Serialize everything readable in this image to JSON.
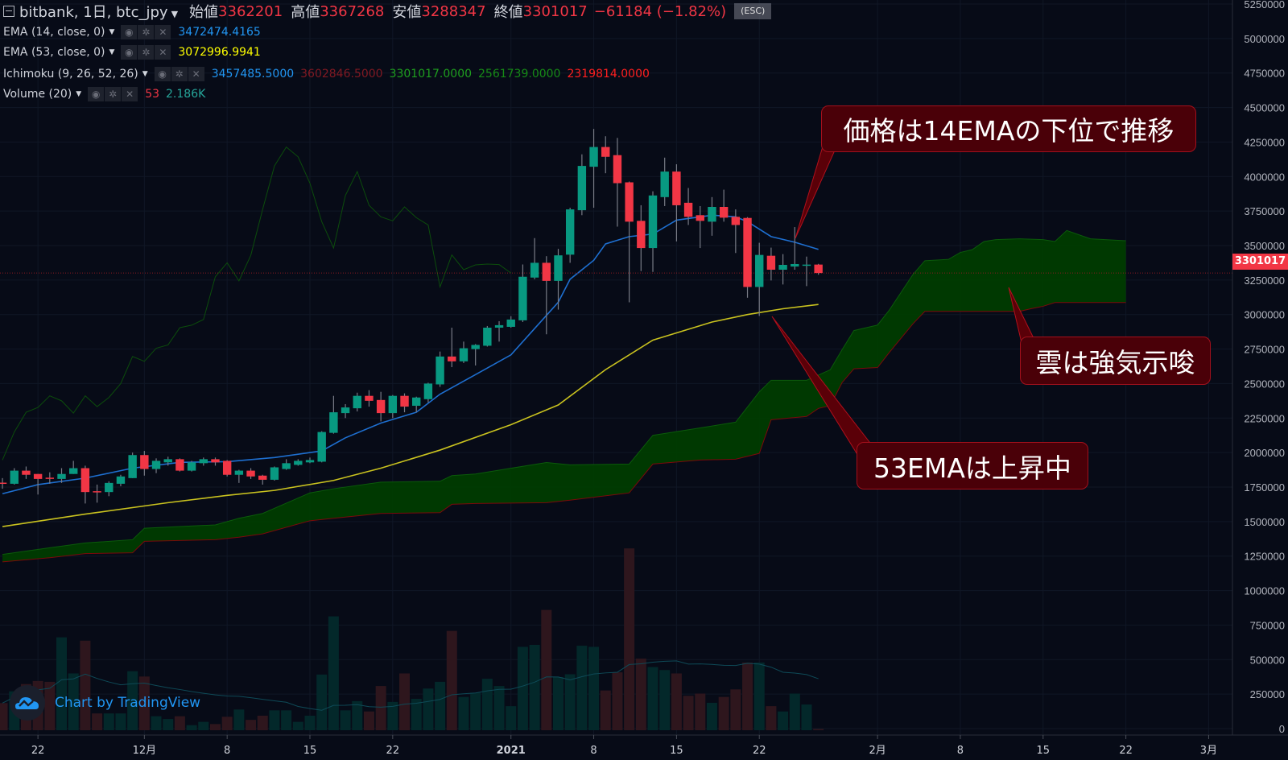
{
  "header": {
    "symbol": "bitbank, 1日, btc_jpy",
    "open_label": "始値",
    "open": "3362201",
    "high_label": "高値",
    "high": "3367268",
    "low_label": "安値",
    "low": "3288347",
    "close_label": "終値",
    "close": "3301017",
    "change": "−61184 (−1.82%)",
    "esc": "(ESC)"
  },
  "indicators": [
    {
      "label": "EMA (14, close, 0)",
      "values": [
        {
          "text": "3472474.4165",
          "color": "#2196f3"
        }
      ]
    },
    {
      "label": "EMA (53, close, 0)",
      "values": [
        {
          "text": "3072996.9941",
          "color": "#ffff00"
        }
      ]
    },
    {
      "label": "Ichimoku (9, 26, 52, 26)",
      "values": [
        {
          "text": "3457485.5000",
          "color": "#2196f3"
        },
        {
          "text": "3602846.5000",
          "color": "#801922"
        },
        {
          "text": "3301017.0000",
          "color": "#1e9e1e"
        },
        {
          "text": "2561739.0000",
          "color": "#168a16"
        },
        {
          "text": "2319814.0000",
          "color": "#ff1f1f"
        }
      ]
    },
    {
      "label": "Volume (20)",
      "values": [
        {
          "text": "53",
          "color": "#f23645"
        },
        {
          "text": "2.186K",
          "color": "#26a69a"
        }
      ]
    }
  ],
  "icons": {
    "visibility": "eye-icon",
    "settings": "gear-icon",
    "remove": "close-icon",
    "menu": "chevron-down-icon",
    "collapse": "collapse-icon"
  },
  "price_tag": "3301017",
  "watermark": "Chart by TradingView",
  "annotations": [
    {
      "text": "価格は14EMAの下位で推移"
    },
    {
      "text": "雲は強気示唆"
    },
    {
      "text": "53EMAは上昇中"
    }
  ],
  "colors": {
    "background": "#070b17",
    "up": "#089981",
    "down": "#f23645",
    "wick": "#787b86",
    "volume_up": "#03282a",
    "volume_down": "#2e161d",
    "volume_ma": "#0e4a57",
    "ema14": "#1e6fd0",
    "ema53": "#c9c21f",
    "cloud_fill": "#003c00",
    "span_a": "#0b5a0b",
    "span_b": "#7a0a0a",
    "lagging_span": "#0c4d0c",
    "callout_fill": "#4a0008",
    "callout_border": "#a3101c",
    "price_line": "#8b1a22"
  },
  "chart_data": {
    "type": "candlestick",
    "symbol": "bitbank, 1日, btc_jpy",
    "y_ticks": [
      0,
      250000,
      500000,
      750000,
      1000000,
      1250000,
      1500000,
      1750000,
      2000000,
      2250000,
      2500000,
      2750000,
      3000000,
      3250000,
      3500000,
      3750000,
      4000000,
      4250000,
      4500000,
      4750000,
      5000000,
      5250000
    ],
    "ylim": [
      0,
      5280000
    ],
    "xlim": [
      "2020-11-19",
      "2021-03-03"
    ],
    "x_ticks": [
      {
        "date": "2020-11-22",
        "label": "22"
      },
      {
        "date": "2020-12-01",
        "label": "12月"
      },
      {
        "date": "2020-12-08",
        "label": "8"
      },
      {
        "date": "2020-12-15",
        "label": "15"
      },
      {
        "date": "2020-12-22",
        "label": "22"
      },
      {
        "date": "2021-01-01",
        "label": "2021",
        "bold": true
      },
      {
        "date": "2021-01-08",
        "label": "8"
      },
      {
        "date": "2021-01-15",
        "label": "15"
      },
      {
        "date": "2021-01-22",
        "label": "22"
      },
      {
        "date": "2021-02-01",
        "label": "2月"
      },
      {
        "date": "2021-02-08",
        "label": "8"
      },
      {
        "date": "2021-02-15",
        "label": "15"
      },
      {
        "date": "2021-02-22",
        "label": "22"
      },
      {
        "date": "2021-03-01",
        "label": "3月"
      }
    ],
    "grid": true,
    "candle_fields": [
      "date",
      "open",
      "high",
      "low",
      "close",
      "volume"
    ],
    "candles": [
      [
        "2020-11-19",
        1782000,
        1815000,
        1738000,
        1780000,
        1139
      ],
      [
        "2020-11-20",
        1774000,
        1887000,
        1768000,
        1869000,
        1632
      ],
      [
        "2020-11-21",
        1869000,
        1899000,
        1809000,
        1839000,
        1937
      ],
      [
        "2020-11-22",
        1845000,
        1845000,
        1696000,
        1809000,
        2066
      ],
      [
        "2020-11-23",
        1818000,
        1857000,
        1774000,
        1815000,
        2031
      ],
      [
        "2020-11-24",
        1809000,
        1887000,
        1780000,
        1845000,
        3898
      ],
      [
        "2020-11-25",
        1845000,
        1940000,
        1845000,
        1887000,
        2383
      ],
      [
        "2020-11-26",
        1887000,
        1905000,
        1631000,
        1714000,
        3757
      ],
      [
        "2020-11-27",
        1720000,
        1768000,
        1637000,
        1714000,
        704
      ],
      [
        "2020-11-28",
        1714000,
        1792000,
        1684000,
        1780000,
        704
      ],
      [
        "2020-11-29",
        1774000,
        1839000,
        1756000,
        1827000,
        704
      ],
      [
        "2020-11-30",
        1815000,
        2000000,
        1815000,
        1982000,
        2477
      ],
      [
        "2020-12-01",
        1982000,
        2012000,
        1833000,
        1881000,
        2254
      ],
      [
        "2020-12-02",
        1881000,
        1958000,
        1851000,
        1940000,
        587
      ],
      [
        "2020-12-03",
        1929000,
        1970000,
        1905000,
        1952000,
        470
      ],
      [
        "2020-12-04",
        1952000,
        1958000,
        1863000,
        1869000,
        587
      ],
      [
        "2020-12-05",
        1869000,
        1940000,
        1863000,
        1929000,
        211
      ],
      [
        "2020-12-06",
        1923000,
        1964000,
        1905000,
        1952000,
        352
      ],
      [
        "2020-12-07",
        1952000,
        1964000,
        1905000,
        1929000,
        258
      ],
      [
        "2020-12-08",
        1940000,
        1946000,
        1827000,
        1839000,
        564
      ],
      [
        "2020-12-09",
        1839000,
        1875000,
        1780000,
        1869000,
        869
      ],
      [
        "2020-12-10",
        1869000,
        1887000,
        1809000,
        1827000,
        434
      ],
      [
        "2020-12-11",
        1833000,
        1839000,
        1768000,
        1803000,
        610
      ],
      [
        "2020-12-12",
        1803000,
        1899000,
        1797000,
        1893000,
        834
      ],
      [
        "2020-12-13",
        1881000,
        1952000,
        1875000,
        1923000,
        834
      ],
      [
        "2020-12-14",
        1911000,
        1952000,
        1905000,
        1940000,
        352
      ],
      [
        "2020-12-15",
        1929000,
        1964000,
        1923000,
        1946000,
        610
      ],
      [
        "2020-12-16",
        1934000,
        2155000,
        1929000,
        2149000,
        2336
      ],
      [
        "2020-12-17",
        2143000,
        2411000,
        2137000,
        2292000,
        4778
      ],
      [
        "2020-12-18",
        2286000,
        2351000,
        2250000,
        2327000,
        834
      ],
      [
        "2020-12-19",
        2321000,
        2434000,
        2298000,
        2411000,
        1221
      ],
      [
        "2020-12-20",
        2411000,
        2452000,
        2333000,
        2375000,
        787
      ],
      [
        "2020-12-21",
        2381000,
        2440000,
        2226000,
        2286000,
        1855
      ],
      [
        "2020-12-22",
        2286000,
        2417000,
        2250000,
        2411000,
        1186
      ],
      [
        "2020-12-23",
        2411000,
        2429000,
        2292000,
        2333000,
        2383
      ],
      [
        "2020-12-24",
        2339000,
        2405000,
        2292000,
        2399000,
        1315
      ],
      [
        "2020-12-25",
        2387000,
        2506000,
        2363000,
        2500000,
        1749
      ],
      [
        "2020-12-26",
        2494000,
        2732000,
        2476000,
        2696000,
        2031
      ],
      [
        "2020-12-27",
        2696000,
        2905000,
        2619000,
        2661000,
        4168
      ],
      [
        "2020-12-28",
        2661000,
        2804000,
        2649000,
        2756000,
        1397
      ],
      [
        "2020-12-29",
        2750000,
        2786000,
        2631000,
        2780000,
        1573
      ],
      [
        "2020-12-30",
        2774000,
        2917000,
        2768000,
        2905000,
        2160
      ],
      [
        "2020-12-31",
        2905000,
        2952000,
        2804000,
        2923000,
        1855
      ],
      [
        "2021-01-01",
        2911000,
        2988000,
        2905000,
        2964000,
        1010
      ],
      [
        "2021-01-02",
        2958000,
        3363000,
        2946000,
        3274000,
        3499
      ],
      [
        "2021-01-03",
        3268000,
        3554000,
        3256000,
        3375000,
        3581
      ],
      [
        "2021-01-04",
        3375000,
        3423000,
        2857000,
        3244000,
        5048
      ],
      [
        "2021-01-05",
        3244000,
        3476000,
        3036000,
        3429000,
        2231
      ],
      [
        "2021-01-06",
        3434000,
        3774000,
        3375000,
        3762000,
        2348
      ],
      [
        "2021-01-07",
        3756000,
        4161000,
        3720000,
        4077000,
        3545
      ],
      [
        "2021-01-08",
        4071000,
        4345000,
        3774000,
        4214000,
        3499
      ],
      [
        "2021-01-09",
        4214000,
        4292000,
        4024000,
        4143000,
        1667
      ],
      [
        "2021-01-10",
        4155000,
        4280000,
        3637000,
        3952000,
        2430
      ],
      [
        "2021-01-11",
        3958000,
        3964000,
        3089000,
        3673000,
        7631
      ],
      [
        "2021-01-12",
        3679000,
        3792000,
        3315000,
        3482000,
        3005
      ],
      [
        "2021-01-13",
        3482000,
        3893000,
        3309000,
        3863000,
        2653
      ],
      [
        "2021-01-14",
        3851000,
        4137000,
        3786000,
        4036000,
        2524
      ],
      [
        "2021-01-15",
        4036000,
        4089000,
        3530000,
        3792000,
        2383
      ],
      [
        "2021-01-16",
        3810000,
        3917000,
        3649000,
        3708000,
        1444
      ],
      [
        "2021-01-17",
        3720000,
        3786000,
        3482000,
        3679000,
        1538
      ],
      [
        "2021-01-18",
        3673000,
        3851000,
        3571000,
        3780000,
        1151
      ],
      [
        "2021-01-19",
        3780000,
        3905000,
        3673000,
        3702000,
        1397
      ],
      [
        "2021-01-20",
        3708000,
        3762000,
        3446000,
        3649000,
        1714
      ],
      [
        "2021-01-21",
        3700000,
        3706000,
        3122000,
        3200000,
        2841
      ],
      [
        "2021-01-22",
        3200000,
        3520000,
        2990000,
        3432000,
        2841
      ],
      [
        "2021-01-23",
        3426000,
        3485000,
        3247000,
        3325000,
        1010
      ],
      [
        "2021-01-24",
        3325000,
        3438000,
        3218000,
        3360000,
        787
      ],
      [
        "2021-01-25",
        3348000,
        3634000,
        3325000,
        3366000,
        1538
      ],
      [
        "2021-01-26",
        3354000,
        3420000,
        3206000,
        3362000,
        1080
      ],
      [
        "2021-01-27",
        3362201,
        3367268,
        3288347,
        3301017,
        53
      ]
    ],
    "last_close": 3301017,
    "ema14": [
      [
        "2020-11-19",
        1702000
      ],
      [
        "2020-11-22",
        1768000
      ],
      [
        "2020-11-26",
        1815000
      ],
      [
        "2020-11-30",
        1887000
      ],
      [
        "2020-12-04",
        1929000
      ],
      [
        "2020-12-08",
        1934000
      ],
      [
        "2020-12-12",
        1964000
      ],
      [
        "2020-12-16",
        2012000
      ],
      [
        "2020-12-18",
        2107000
      ],
      [
        "2020-12-21",
        2214000
      ],
      [
        "2020-12-24",
        2292000
      ],
      [
        "2020-12-26",
        2423000
      ],
      [
        "2020-12-29",
        2565000
      ],
      [
        "2021-01-01",
        2708000
      ],
      [
        "2021-01-03",
        2899000
      ],
      [
        "2021-01-05",
        3089000
      ],
      [
        "2021-01-06",
        3256000
      ],
      [
        "2021-01-08",
        3393000
      ],
      [
        "2021-01-09",
        3512000
      ],
      [
        "2021-01-11",
        3565000
      ],
      [
        "2021-01-13",
        3583000
      ],
      [
        "2021-01-15",
        3684000
      ],
      [
        "2021-01-18",
        3720000
      ],
      [
        "2021-01-20",
        3708000
      ],
      [
        "2021-01-21",
        3673000
      ],
      [
        "2021-01-23",
        3565000
      ],
      [
        "2021-01-25",
        3524000
      ],
      [
        "2021-01-27",
        3472474
      ]
    ],
    "ema53": [
      [
        "2020-11-19",
        1464000
      ],
      [
        "2020-11-26",
        1554000
      ],
      [
        "2020-12-03",
        1637000
      ],
      [
        "2020-12-08",
        1690000
      ],
      [
        "2020-12-12",
        1726000
      ],
      [
        "2020-12-17",
        1798000
      ],
      [
        "2020-12-21",
        1887000
      ],
      [
        "2020-12-26",
        2018000
      ],
      [
        "2021-01-01",
        2202000
      ],
      [
        "2021-01-05",
        2345000
      ],
      [
        "2021-01-09",
        2601000
      ],
      [
        "2021-01-13",
        2815000
      ],
      [
        "2021-01-18",
        2946000
      ],
      [
        "2021-01-21",
        3000000
      ],
      [
        "2021-01-24",
        3042000
      ],
      [
        "2021-01-27",
        3072997
      ]
    ],
    "ichimoku_cloud_fields": [
      "date",
      "span_a",
      "span_b"
    ],
    "ichimoku_cloud": [
      [
        "2020-11-19",
        1262000,
        1208000
      ],
      [
        "2020-11-23",
        1310000,
        1238000
      ],
      [
        "2020-11-26",
        1345000,
        1268000
      ],
      [
        "2020-11-30",
        1369000,
        1274000
      ],
      [
        "2020-12-01",
        1452000,
        1357000
      ],
      [
        "2020-12-07",
        1476000,
        1369000
      ],
      [
        "2020-12-09",
        1524000,
        1387000
      ],
      [
        "2020-12-11",
        1559000,
        1411000
      ],
      [
        "2020-12-15",
        1708000,
        1506000
      ],
      [
        "2020-12-17",
        1738000,
        1524000
      ],
      [
        "2020-12-21",
        1786000,
        1559000
      ],
      [
        "2020-12-26",
        1792000,
        1565000
      ],
      [
        "2020-12-27",
        1833000,
        1625000
      ],
      [
        "2020-12-29",
        1845000,
        1631000
      ],
      [
        "2021-01-04",
        1928000,
        1637000
      ],
      [
        "2021-01-06",
        1911000,
        1655000
      ],
      [
        "2021-01-11",
        1917000,
        1708000
      ],
      [
        "2021-01-13",
        2125000,
        1917000
      ],
      [
        "2021-01-17",
        2179000,
        1946000
      ],
      [
        "2021-01-20",
        2220000,
        1952000
      ],
      [
        "2021-01-22",
        2440000,
        1994000
      ],
      [
        "2021-01-23",
        2524000,
        2238000
      ],
      [
        "2021-01-26",
        2524000,
        2262000
      ],
      [
        "2021-01-27",
        2561739,
        2319814
      ],
      [
        "2021-01-28",
        2600000,
        2340000
      ],
      [
        "2021-01-29",
        2745000,
        2507000
      ],
      [
        "2021-01-30",
        2884000,
        2607000
      ],
      [
        "2021-02-01",
        2924000,
        2616000
      ],
      [
        "2021-02-02",
        3033000,
        2726000
      ],
      [
        "2021-02-04",
        3291000,
        2934000
      ],
      [
        "2021-02-05",
        3390000,
        3023000
      ],
      [
        "2021-02-07",
        3400000,
        3023000
      ],
      [
        "2021-02-08",
        3450000,
        3023000
      ],
      [
        "2021-02-09",
        3470000,
        3023000
      ],
      [
        "2021-02-10",
        3529000,
        3023000
      ],
      [
        "2021-02-11",
        3543000,
        3023000
      ],
      [
        "2021-02-13",
        3549000,
        3023000
      ],
      [
        "2021-02-14",
        3546000,
        3043000
      ],
      [
        "2021-02-15",
        3543000,
        3060000
      ],
      [
        "2021-02-16",
        3529000,
        3087000
      ],
      [
        "2021-02-17",
        3609000,
        3087000
      ],
      [
        "2021-02-19",
        3549000,
        3087000
      ],
      [
        "2021-02-22",
        3535000,
        3087000
      ]
    ],
    "lagging_span_displacement": 26,
    "volume_ma_length": 20
  }
}
